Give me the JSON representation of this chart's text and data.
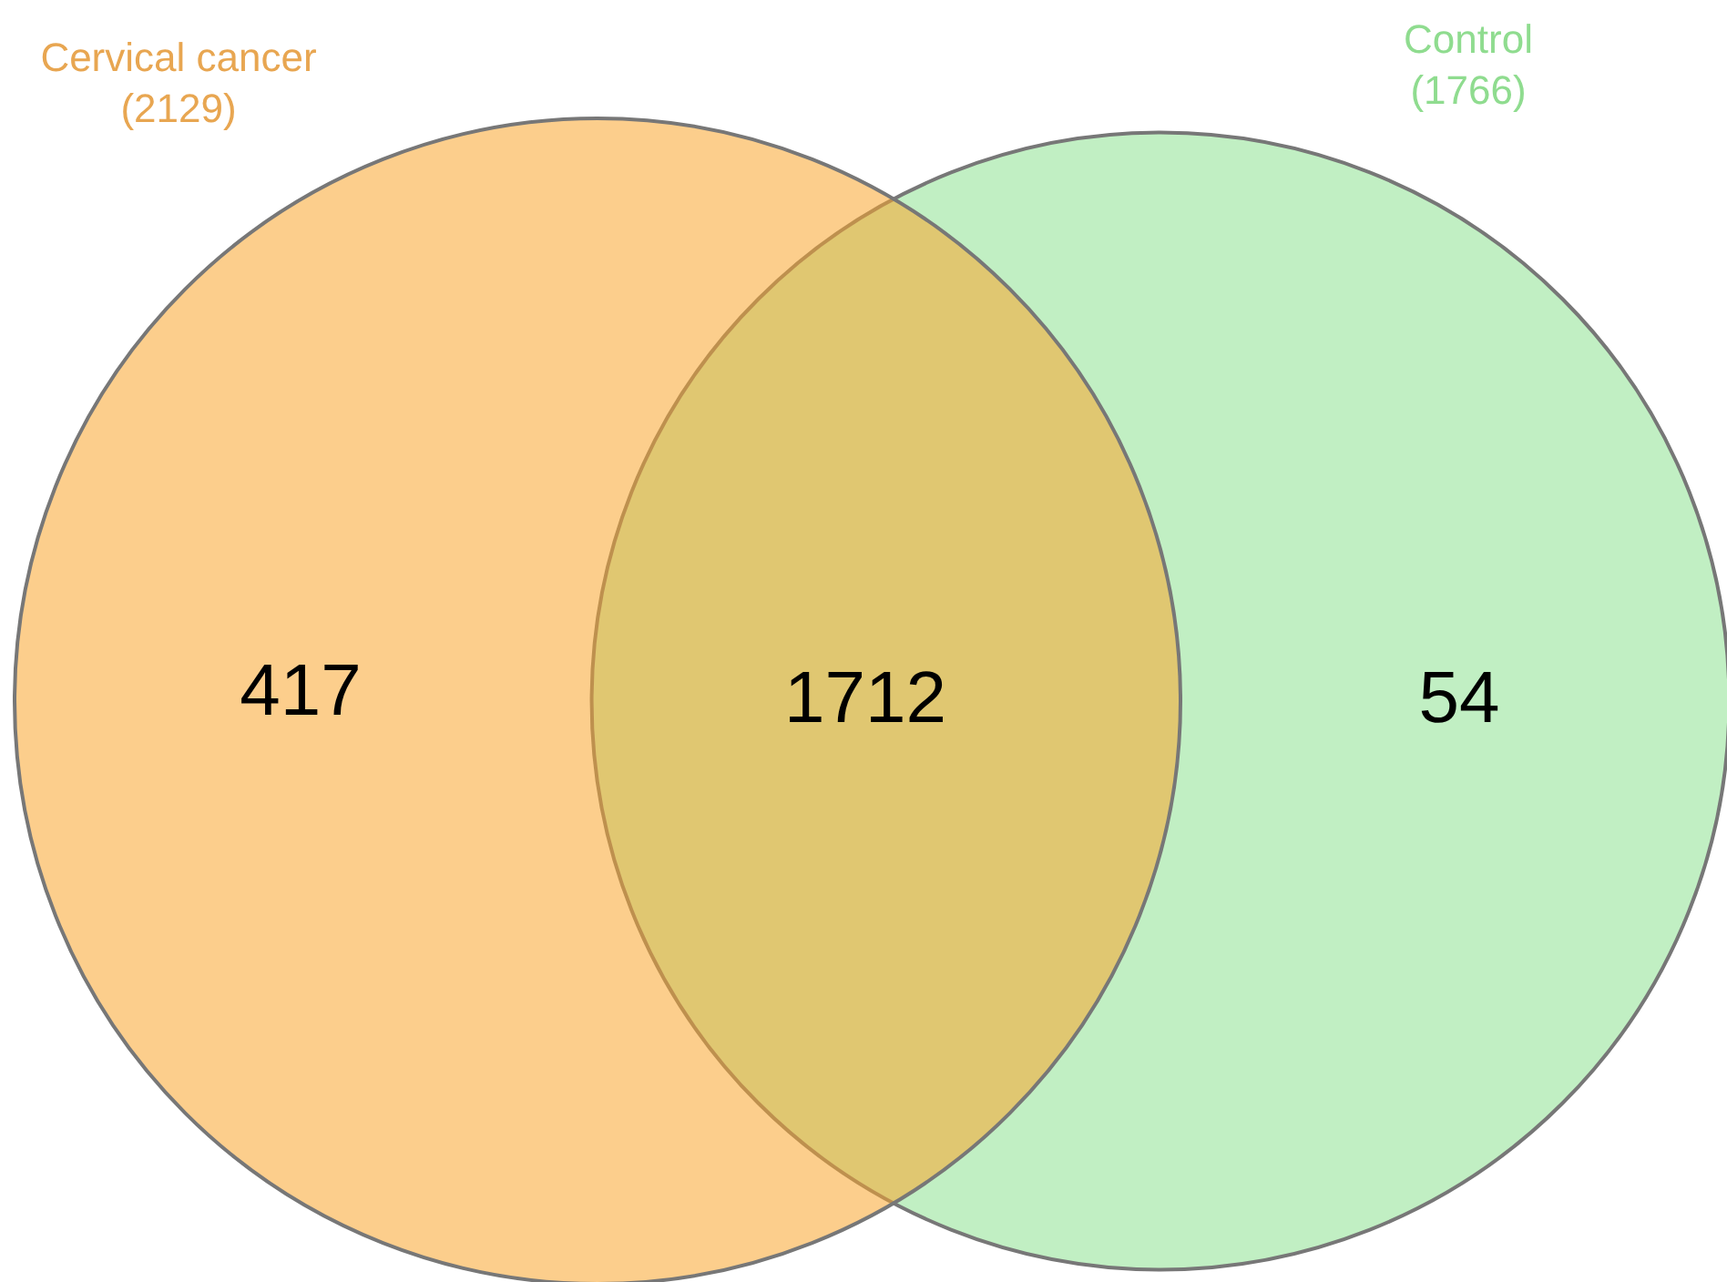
{
  "chart_data": {
    "type": "other",
    "categories": [
      "Cervical cancer",
      "Control"
    ],
    "values": [
      2129,
      1766
    ],
    "value_labels": [
      "(2129)",
      "(1766)"
    ],
    "colors": [
      "#f9a52e",
      "#c1efc3"
    ],
    "annotations": [
      "417",
      "1712",
      "54"
    ]
  }
}
